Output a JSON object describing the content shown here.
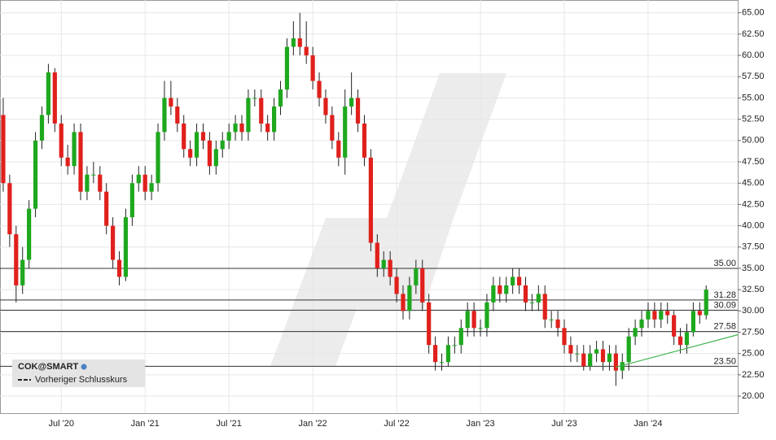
{
  "chart_data": {
    "type": "candlestick",
    "legend": {
      "symbol": "COK@SMART",
      "previous_close": "Vorheriger Schlusskurs"
    },
    "up_color": "#1ea81e",
    "down_color": "#e0201c",
    "categories": [
      null,
      null,
      null,
      null,
      null,
      null,
      null,
      null,
      null,
      "Jul '20",
      null,
      null,
      null,
      null,
      null,
      null,
      null,
      null,
      null,
      null,
      null,
      null,
      "Jan '21",
      null,
      null,
      null,
      null,
      null,
      null,
      null,
      null,
      null,
      null,
      null,
      null,
      "Jul '21",
      null,
      null,
      null,
      null,
      null,
      null,
      null,
      null,
      null,
      null,
      null,
      null,
      "Jan '22",
      null,
      null,
      null,
      null,
      null,
      null,
      null,
      null,
      null,
      null,
      null,
      null,
      "Jul '22",
      null,
      null,
      null,
      null,
      null,
      null,
      null,
      null,
      null,
      null,
      null,
      null,
      "Jan '23",
      null,
      null,
      null,
      null,
      null,
      null,
      null,
      null,
      null,
      null,
      null,
      null,
      "Jul '23",
      null,
      null,
      null,
      null,
      null,
      null,
      null,
      null,
      null,
      null,
      null,
      null,
      "Jan '24",
      null,
      null,
      null,
      null,
      null,
      null,
      null,
      null,
      null
    ],
    "open": [
      53,
      45,
      39,
      33,
      36,
      42,
      50,
      53,
      58,
      52,
      48,
      47,
      51,
      44,
      46,
      46,
      44,
      40,
      36,
      34,
      41,
      45,
      46,
      44,
      45,
      51,
      55,
      54,
      52,
      49,
      48,
      51,
      50,
      47,
      49,
      50,
      51,
      52,
      51,
      55,
      55,
      52,
      51,
      54,
      56,
      61,
      62,
      61,
      60,
      57,
      55,
      53,
      50,
      48,
      54,
      55,
      52,
      48,
      38,
      35,
      36,
      34,
      32,
      30,
      33,
      35,
      31,
      26,
      24,
      24,
      26,
      26,
      28,
      30,
      28,
      28,
      31,
      33,
      32,
      33,
      34,
      33,
      31,
      31,
      32,
      29,
      29,
      28,
      26,
      25,
      25,
      23.5,
      25,
      25.5,
      24,
      25,
      23,
      24,
      27,
      28,
      29,
      30,
      29,
      30,
      29.5,
      27,
      26,
      27.5,
      30,
      29.5
    ],
    "high": [
      55,
      46,
      40,
      37.5,
      43,
      51,
      54,
      59,
      58.5,
      53,
      49.5,
      52,
      52,
      47,
      47.5,
      47,
      45,
      41,
      37,
      42,
      46,
      47,
      47,
      46,
      52,
      57,
      57,
      55,
      53,
      50,
      52,
      52,
      51,
      50,
      51,
      52,
      53,
      53,
      56,
      56,
      56,
      53,
      55,
      57,
      62,
      64,
      65,
      64,
      61,
      58,
      56,
      54,
      51,
      56,
      58,
      56,
      53,
      49,
      39,
      37,
      37,
      35,
      33,
      34,
      36,
      36,
      32,
      27,
      25,
      27,
      27,
      29,
      31,
      31,
      29,
      32,
      34,
      34,
      34,
      35,
      35,
      34,
      32,
      33,
      33,
      30,
      30,
      29,
      27,
      26,
      26,
      26,
      26.5,
      26.5,
      26,
      26,
      25,
      28,
      29,
      30,
      31,
      31,
      31,
      31,
      30,
      28,
      28.5,
      31,
      31,
      33
    ],
    "low": [
      44,
      37.5,
      31,
      32,
      35,
      41,
      49,
      52,
      51,
      47,
      46,
      46,
      43,
      43,
      45,
      43,
      39,
      35,
      33,
      33.5,
      40,
      44,
      43,
      43,
      44,
      50,
      53,
      51,
      48,
      47,
      47,
      49,
      46,
      46,
      48,
      49,
      50,
      50,
      50,
      54,
      51,
      50,
      50,
      53,
      55,
      60,
      60,
      59,
      56,
      54,
      52,
      49,
      47,
      46,
      53,
      51,
      47,
      37,
      34,
      34,
      33,
      31,
      29,
      29,
      32,
      30,
      25,
      23,
      23,
      23.5,
      25,
      25,
      27,
      27,
      27,
      27,
      30,
      31,
      31,
      32,
      32,
      30,
      30,
      30,
      28,
      28,
      27,
      25,
      24,
      24,
      23,
      23,
      24,
      23,
      23,
      21.2,
      22,
      23,
      26,
      27,
      28,
      28,
      28,
      28.5,
      26,
      25,
      25,
      27,
      28.5,
      29
    ],
    "close": [
      45,
      39,
      33,
      36,
      42,
      50,
      53,
      58,
      52,
      48,
      47,
      51,
      44,
      46,
      46,
      44,
      40,
      36,
      34,
      41,
      45,
      46,
      44,
      45,
      51,
      55,
      54,
      52,
      49,
      48,
      51,
      50,
      47,
      49,
      50,
      51,
      52,
      51,
      55,
      55,
      52,
      51,
      54,
      56,
      61,
      62,
      61,
      60,
      57,
      55,
      53,
      50,
      48,
      54,
      55,
      52,
      48,
      38,
      35,
      36,
      34,
      32,
      30,
      33,
      35,
      31,
      26,
      24,
      24,
      26,
      26,
      28,
      30,
      28,
      28,
      31,
      33,
      32,
      33,
      34,
      33,
      31,
      31,
      32,
      29,
      29,
      28,
      26,
      25,
      25,
      23.5,
      25,
      25.5,
      24,
      25,
      23,
      24,
      27,
      28,
      29,
      30,
      29,
      30,
      29.5,
      27,
      26,
      27.5,
      30,
      29.5,
      32.5
    ],
    "levels": [
      {
        "value": 35,
        "label": "35.00"
      },
      {
        "value": 31.28,
        "label": "31.28"
      },
      {
        "value": 30.09,
        "label": "30.09"
      },
      {
        "value": 27.58,
        "label": "27.58"
      },
      {
        "value": 23.5,
        "label": "23.50"
      }
    ],
    "trend_line": {
      "color": "#3cb44b",
      "values": [
        23.4,
        27.2
      ]
    },
    "ylim": [
      18,
      66.5
    ],
    "yticks": [
      {
        "value": 20,
        "label": "20.00"
      },
      {
        "value": 22.5,
        "label": "22.50"
      },
      {
        "value": 25,
        "label": "25.00"
      },
      {
        "value": 27.5,
        "label": "27.50"
      },
      {
        "value": 30,
        "label": "30.00"
      },
      {
        "value": 32.5,
        "label": "32.50"
      },
      {
        "value": 35,
        "label": "35.00"
      },
      {
        "value": 37.5,
        "label": "37.50"
      },
      {
        "value": 40,
        "label": "40.00"
      },
      {
        "value": 42.5,
        "label": "42.50"
      },
      {
        "value": 45,
        "label": "45.00"
      },
      {
        "value": 47.5,
        "label": "47.50"
      },
      {
        "value": 50,
        "label": "50.00"
      },
      {
        "value": 52.5,
        "label": "52.50"
      },
      {
        "value": 55,
        "label": "55.00"
      },
      {
        "value": 57.5,
        "label": "57.50"
      },
      {
        "value": 60,
        "label": "60.00"
      },
      {
        "value": 62.5,
        "label": "62.50"
      },
      {
        "value": 65,
        "label": "65.00"
      }
    ],
    "grid": true
  }
}
